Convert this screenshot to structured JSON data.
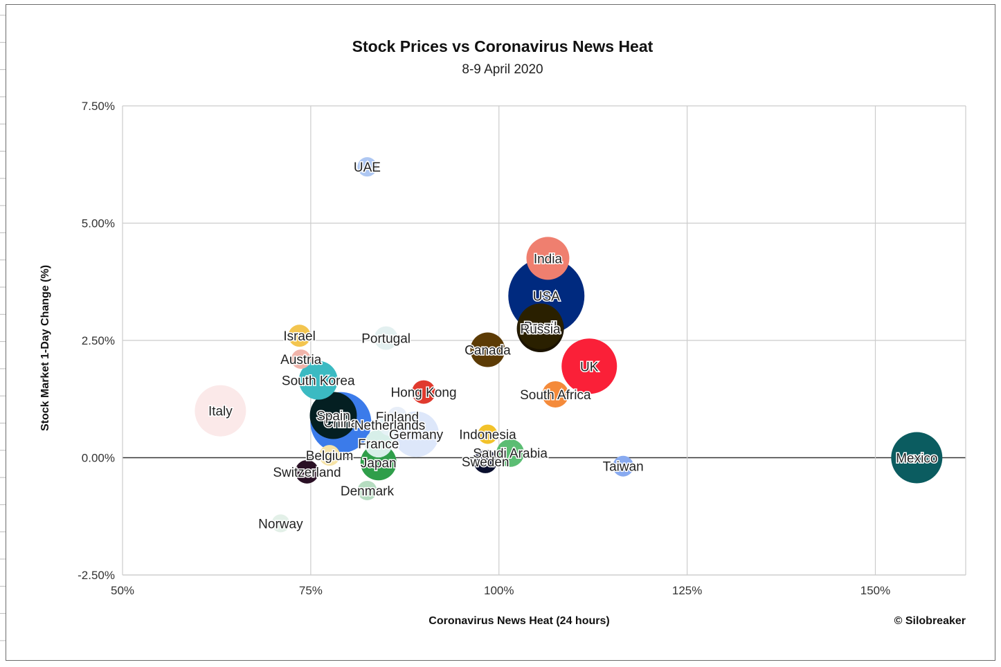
{
  "chart_data": {
    "type": "bubble",
    "title": "Stock Prices vs Coronavirus News Heat",
    "subtitle": "8-9 April 2020",
    "xlabel": "Coronavirus News Heat (24 hours)",
    "ylabel": "Stock Market 1-Day Change (%)",
    "credit": "© Silobreaker",
    "xlim": [
      50,
      162
    ],
    "ylim": [
      -2.5,
      7.5
    ],
    "x_ticks": [
      50,
      75,
      100,
      125,
      150
    ],
    "x_tick_labels": [
      "50%",
      "75%",
      "100%",
      "125%",
      "150%"
    ],
    "y_ticks": [
      -2.5,
      0,
      2.5,
      5,
      7.5
    ],
    "y_tick_labels": [
      "-2.50%",
      "0.00%",
      "2.50%",
      "5.00%",
      "7.50%"
    ],
    "grid": true,
    "legend": "none",
    "points": [
      {
        "label": "UAE",
        "x": 82.5,
        "y": 6.2,
        "size": 14,
        "color": "#aec7f2"
      },
      {
        "label": "India",
        "x": 106.5,
        "y": 4.25,
        "size": 31,
        "color": "#ef7f6f"
      },
      {
        "label": "USA",
        "x": 106.3,
        "y": 3.45,
        "size": 55,
        "color": "#002a7f"
      },
      {
        "label": "Brazil",
        "x": 105.5,
        "y": 2.8,
        "size": 33,
        "color": "#2a2000"
      },
      {
        "label": "Russia",
        "x": 105.5,
        "y": 2.75,
        "size": 34,
        "color": "#1b1300"
      },
      {
        "label": "Israel",
        "x": 73.5,
        "y": 2.6,
        "size": 16,
        "color": "#f3c54f"
      },
      {
        "label": "Portugal",
        "x": 85.0,
        "y": 2.55,
        "size": 17,
        "color": "#e3f0f0"
      },
      {
        "label": "Canada",
        "x": 98.5,
        "y": 2.3,
        "size": 25,
        "color": "#5c3b05"
      },
      {
        "label": "Austria",
        "x": 73.7,
        "y": 2.1,
        "size": 14,
        "color": "#f0b4aa"
      },
      {
        "label": "UK",
        "x": 112.0,
        "y": 1.95,
        "size": 40,
        "color": "#fa2038"
      },
      {
        "label": "South Korea",
        "x": 76.0,
        "y": 1.65,
        "size": 28,
        "color": "#3bbac2"
      },
      {
        "label": "Hong Kong",
        "x": 90.0,
        "y": 1.4,
        "size": 17,
        "color": "#e03a2e"
      },
      {
        "label": "South Africa",
        "x": 107.5,
        "y": 1.35,
        "size": 19,
        "color": "#f48a3a"
      },
      {
        "label": "Italy",
        "x": 63.0,
        "y": 1.0,
        "size": 37,
        "color": "#fbe9e9"
      },
      {
        "label": "China",
        "x": 79.0,
        "y": 0.75,
        "size": 44,
        "color": "#3b7bea"
      },
      {
        "label": "Spain",
        "x": 78.0,
        "y": 0.9,
        "size": 34,
        "color": "#041f22"
      },
      {
        "label": "Finland",
        "x": 86.5,
        "y": 0.88,
        "size": 14,
        "color": "#e8eef8"
      },
      {
        "label": "Netherlands",
        "x": 85.5,
        "y": 0.7,
        "size": 16,
        "color": "#e6f2f6"
      },
      {
        "label": "Germany",
        "x": 89.0,
        "y": 0.5,
        "size": 33,
        "color": "#dde7fa"
      },
      {
        "label": "Indonesia",
        "x": 98.5,
        "y": 0.5,
        "size": 14,
        "color": "#f2c22a"
      },
      {
        "label": "France",
        "x": 84.0,
        "y": 0.3,
        "size": 20,
        "color": "#d7efe9"
      },
      {
        "label": "Saudi Arabia",
        "x": 101.5,
        "y": 0.1,
        "size": 20,
        "color": "#5bbd73"
      },
      {
        "label": "Belgium",
        "x": 77.5,
        "y": 0.05,
        "size": 15,
        "color": "#f6e3a6"
      },
      {
        "label": "Japan",
        "x": 84.0,
        "y": -0.1,
        "size": 26,
        "color": "#2f9e4a"
      },
      {
        "label": "Sweden",
        "x": 98.2,
        "y": -0.08,
        "size": 17,
        "color": "#0a0f2e"
      },
      {
        "label": "Mexico",
        "x": 155.5,
        "y": 0.0,
        "size": 37,
        "color": "#0b5c60"
      },
      {
        "label": "Taiwan",
        "x": 116.5,
        "y": -0.18,
        "size": 15,
        "color": "#88aaf0"
      },
      {
        "label": "Switzerland",
        "x": 74.5,
        "y": -0.3,
        "size": 17,
        "color": "#2a1025"
      },
      {
        "label": "Denmark",
        "x": 82.5,
        "y": -0.7,
        "size": 14,
        "color": "#b5dcc0"
      },
      {
        "label": "Norway",
        "x": 71.0,
        "y": -1.4,
        "size": 13,
        "color": "#e3f0e8"
      }
    ]
  }
}
